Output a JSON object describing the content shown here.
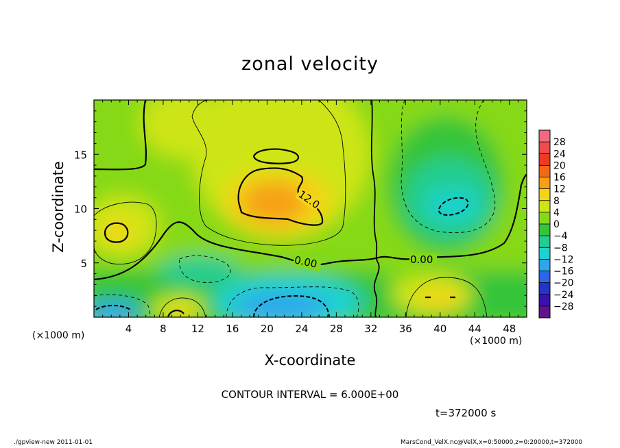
{
  "chart_data": {
    "type": "heatmap",
    "title": "zonal velocity",
    "xlabel": "X-coordinate",
    "ylabel": "Z-coordinate",
    "x_unit_label": "(×1000 m)",
    "y_unit_label": "(×1000 m)",
    "xlim": [
      0,
      50
    ],
    "ylim": [
      0,
      20
    ],
    "x_ticks": [
      4,
      8,
      12,
      16,
      20,
      24,
      28,
      32,
      36,
      40,
      44,
      48
    ],
    "y_ticks": [
      5,
      10,
      15
    ],
    "colorbar": {
      "levels": [
        28,
        24,
        20,
        16,
        12,
        8,
        4,
        0,
        -4,
        -8,
        -12,
        -16,
        -20,
        -24,
        -28
      ],
      "colors": [
        "#f06b7e",
        "#ef4c4c",
        "#ef3a21",
        "#f26a13",
        "#f6a016",
        "#f4d515",
        "#cde513",
        "#86d918",
        "#35c53b",
        "#22cd93",
        "#1cd3d1",
        "#2fa5ee",
        "#2c65e7",
        "#2433cc",
        "#3b0fb2",
        "#62118e"
      ]
    },
    "contour_interval": "CONTOUR INTERVAL = 6.000E+00",
    "contour_labels": [
      "12.0",
      "0.00",
      "0.00"
    ],
    "time_label": "t=372000 s",
    "footer_left": "./gpview-new   2011-01-01",
    "footer_right": "MarsCond_VelX.nc@VelX,x=0:50000,z=0:20000,t=372000",
    "features": [
      {
        "x": 20,
        "z": 11,
        "value": 16,
        "kind": "jet max"
      },
      {
        "x": 2.8,
        "z": 7.8,
        "value": 11,
        "kind": "max"
      },
      {
        "x": 41,
        "z": 10.3,
        "value": -11,
        "kind": "min"
      },
      {
        "x": 20,
        "z": 1.5,
        "value": -18,
        "kind": "min"
      },
      {
        "x": 2,
        "z": 0.5,
        "value": -16,
        "kind": "min"
      },
      {
        "x": 9.5,
        "z": 0.3,
        "value": 10,
        "kind": "max"
      },
      {
        "x": 40,
        "z": 2,
        "value": 12,
        "kind": "max"
      }
    ]
  }
}
